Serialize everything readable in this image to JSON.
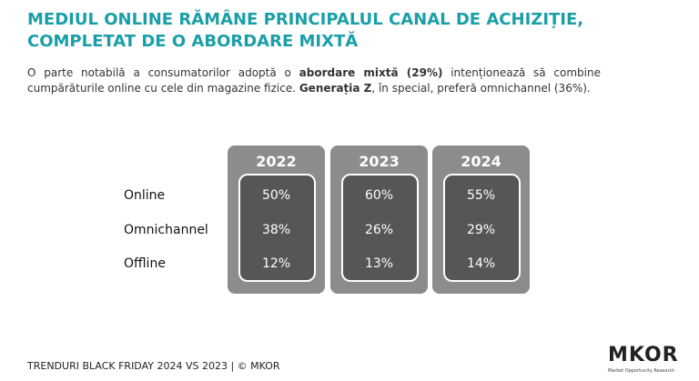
{
  "header": {
    "title": "MEDIUL ONLINE RĂMÂNE PRINCIPALUL CANAL DE ACHIZIȚIE, COMPLETAT DE O ABORDARE MIXTĂ",
    "paragraph": [
      {
        "text": "O parte notabilă a consumatorilor adoptă o ",
        "bold": false
      },
      {
        "text": "abordare mixtă (29%)",
        "bold": true
      },
      {
        "text": " intenționează să combine cumpărăturile online cu cele din magazine fizice. ",
        "bold": false
      },
      {
        "text": "Generația Z",
        "bold": true
      },
      {
        "text": ", în special, preferă omnichannel (36%).",
        "bold": false
      }
    ]
  },
  "table": {
    "columns": [
      "2022",
      "2023",
      "2024"
    ],
    "rows": [
      {
        "label": "Online",
        "cells": [
          "50%",
          "60%",
          "55%"
        ]
      },
      {
        "label": "Omnichannel",
        "cells": [
          "38%",
          "26%",
          "29%"
        ]
      },
      {
        "label": "Offline",
        "cells": [
          "12%",
          "13%",
          "14%"
        ]
      }
    ]
  },
  "footer": {
    "text": "TRENDURI BLACK FRIDAY 2024 VS 2023 | © MKOR",
    "logo": "MKOR",
    "logo_subtitle": "Market Opportunity Research"
  }
}
